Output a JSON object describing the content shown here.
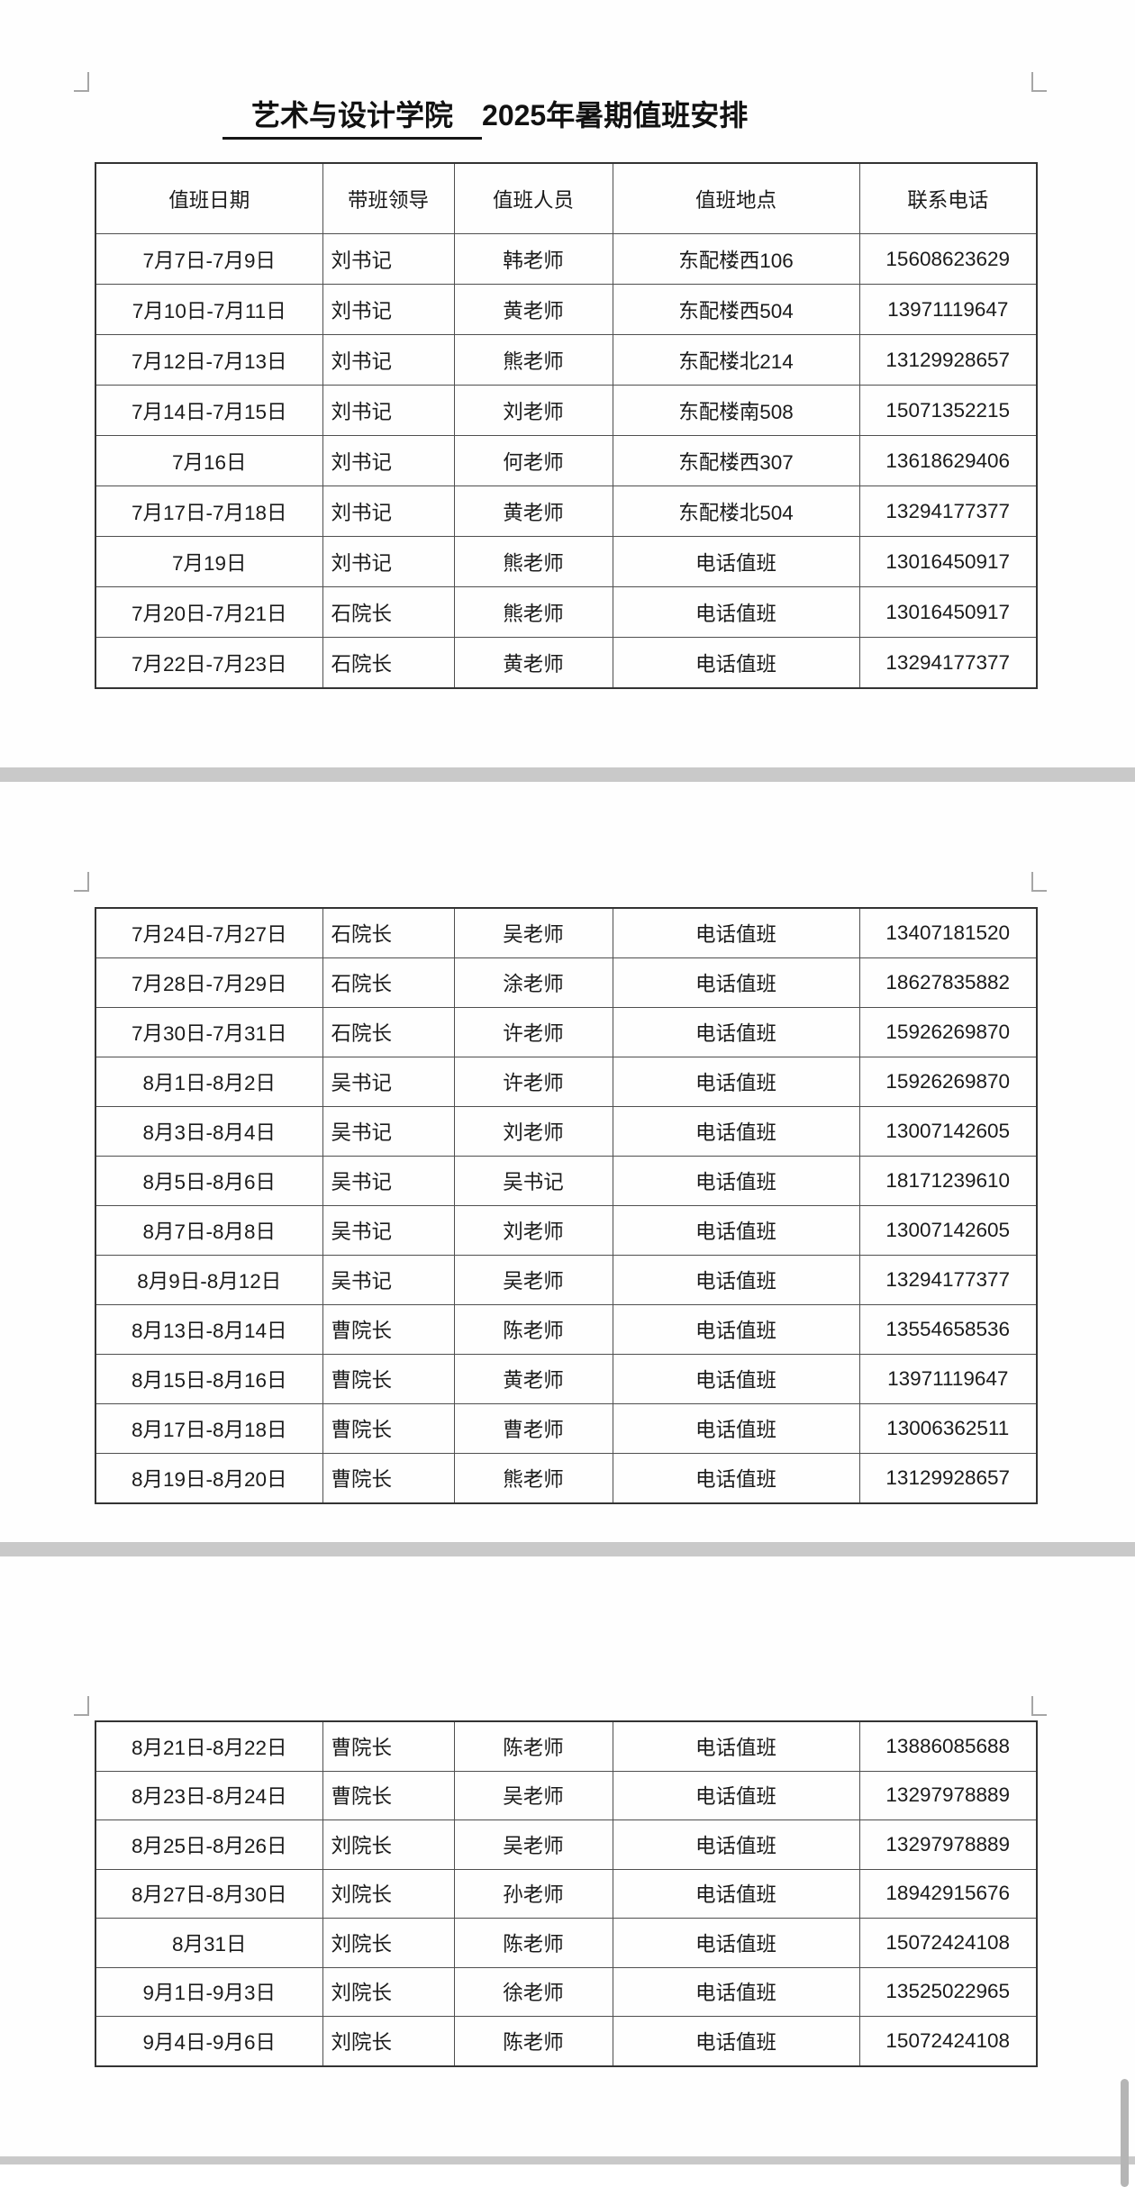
{
  "document": {
    "title": {
      "underlined": "　艺术与设计学院　",
      "rest": "2025年暑期值班安排"
    },
    "columns": [
      "值班日期",
      "带班领导",
      "值班人员",
      "值班地点",
      "联系电话"
    ],
    "pages": [
      {
        "name": "page-1",
        "has_header": true,
        "rows": [
          [
            "7月7日-7月9日",
            "刘书记",
            "韩老师",
            "东配楼西106",
            "15608623629"
          ],
          [
            "7月10日-7月11日",
            "刘书记",
            "黄老师",
            "东配楼西504",
            "13971119647"
          ],
          [
            "7月12日-7月13日",
            "刘书记",
            "熊老师",
            "东配楼北214",
            "13129928657"
          ],
          [
            "7月14日-7月15日",
            "刘书记",
            "刘老师",
            "东配楼南508",
            "15071352215"
          ],
          [
            "7月16日",
            "刘书记",
            "何老师",
            "东配楼西307",
            "13618629406"
          ],
          [
            "7月17日-7月18日",
            "刘书记",
            "黄老师",
            "东配楼北504",
            "13294177377"
          ],
          [
            "7月19日",
            "刘书记",
            "熊老师",
            "电话值班",
            "13016450917"
          ],
          [
            "7月20日-7月21日",
            "石院长",
            "熊老师",
            "电话值班",
            "13016450917"
          ],
          [
            "7月22日-7月23日",
            "石院长",
            "黄老师",
            "电话值班",
            "13294177377"
          ]
        ]
      },
      {
        "name": "page-2",
        "has_header": false,
        "rows": [
          [
            "7月24日-7月27日",
            "石院长",
            "吴老师",
            "电话值班",
            "13407181520"
          ],
          [
            "7月28日-7月29日",
            "石院长",
            "涂老师",
            "电话值班",
            "18627835882"
          ],
          [
            "7月30日-7月31日",
            "石院长",
            "许老师",
            "电话值班",
            "15926269870"
          ],
          [
            "8月1日-8月2日",
            "吴书记",
            "许老师",
            "电话值班",
            "15926269870"
          ],
          [
            "8月3日-8月4日",
            "吴书记",
            "刘老师",
            "电话值班",
            "13007142605"
          ],
          [
            "8月5日-8月6日",
            "吴书记",
            "吴书记",
            "电话值班",
            "18171239610"
          ],
          [
            "8月7日-8月8日",
            "吴书记",
            "刘老师",
            "电话值班",
            "13007142605"
          ],
          [
            "8月9日-8月12日",
            "吴书记",
            "吴老师",
            "电话值班",
            "13294177377"
          ],
          [
            "8月13日-8月14日",
            "曹院长",
            "陈老师",
            "电话值班",
            "13554658536"
          ],
          [
            "8月15日-8月16日",
            "曹院长",
            "黄老师",
            "电话值班",
            "13971119647"
          ],
          [
            "8月17日-8月18日",
            "曹院长",
            "曹老师",
            "电话值班",
            "13006362511"
          ],
          [
            "8月19日-8月20日",
            "曹院长",
            "熊老师",
            "电话值班",
            "13129928657"
          ]
        ]
      },
      {
        "name": "page-3",
        "has_header": false,
        "rows": [
          [
            "8月21日-8月22日",
            "曹院长",
            "陈老师",
            "电话值班",
            "13886085688"
          ],
          [
            "8月23日-8月24日",
            "曹院长",
            "吴老师",
            "电话值班",
            "13297978889"
          ],
          [
            "8月25日-8月26日",
            "刘院长",
            "吴老师",
            "电话值班",
            "13297978889"
          ],
          [
            "8月27日-8月30日",
            "刘院长",
            "孙老师",
            "电话值班",
            "18942915676"
          ],
          [
            "8月31日",
            "刘院长",
            "陈老师",
            "电话值班",
            "15072424108"
          ],
          [
            "9月1日-9月3日",
            "刘院长",
            "徐老师",
            "电话值班",
            "13525022965"
          ],
          [
            "9月4日-9月6日",
            "刘院长",
            "陈老师",
            "电话值班",
            "15072424108"
          ]
        ]
      }
    ],
    "colors": {
      "page_background": "#fefefe",
      "separator_band": "#c9c9c9",
      "table_border": "#4f4f4f",
      "text": "#1b1b1b",
      "scrollbar": "#b5b5b5"
    }
  }
}
